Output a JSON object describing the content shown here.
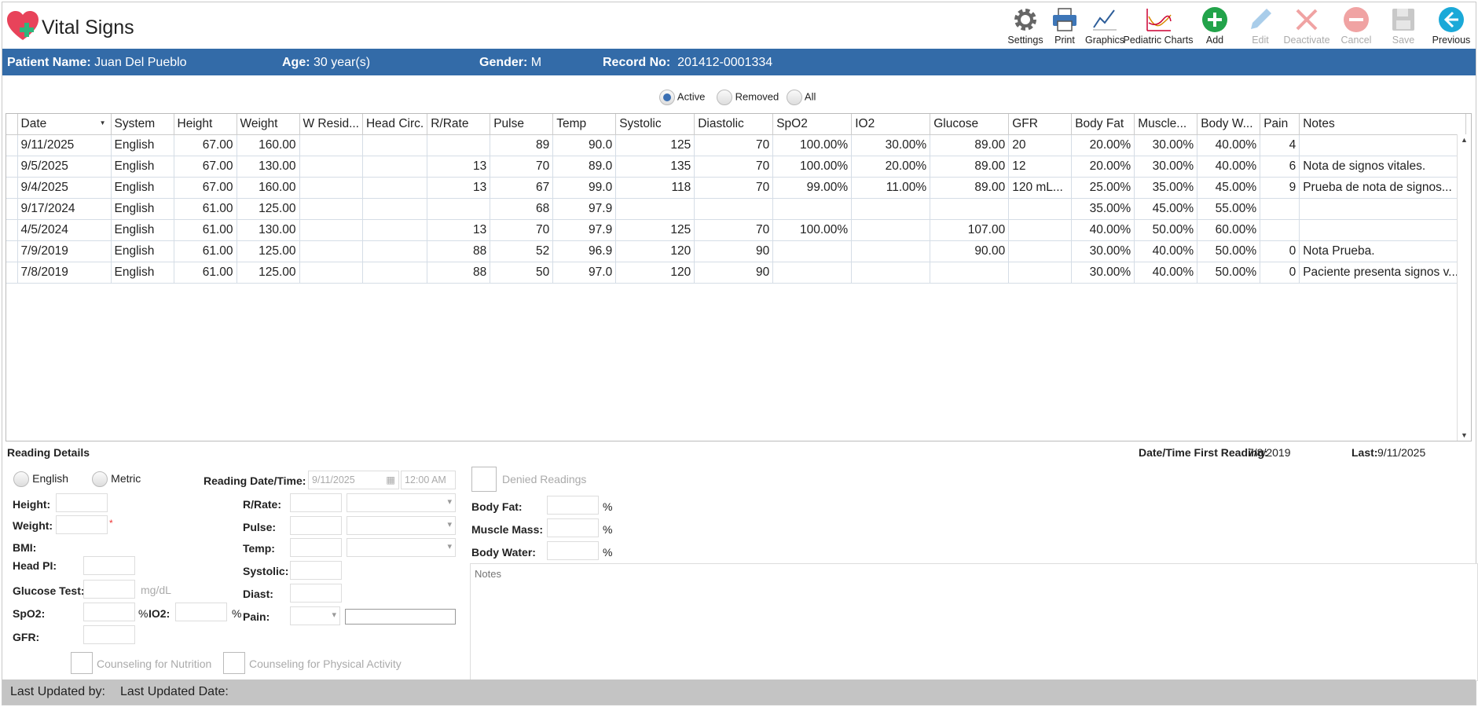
{
  "app": {
    "title": "Vital Signs"
  },
  "toolbar": [
    {
      "id": "settings",
      "label": "Settings",
      "icon": "gear-icon",
      "enabled": true
    },
    {
      "id": "print",
      "label": "Print",
      "icon": "printer-icon",
      "enabled": true
    },
    {
      "id": "graphics",
      "label": "Graphics",
      "icon": "line-chart-icon",
      "enabled": true
    },
    {
      "id": "pediatric",
      "label": "Pediatric Charts",
      "icon": "pediatric-chart-icon",
      "enabled": true
    },
    {
      "id": "add",
      "label": "Add",
      "icon": "plus-circle-icon",
      "enabled": true
    },
    {
      "id": "edit",
      "label": "Edit",
      "icon": "pencil-icon",
      "enabled": false
    },
    {
      "id": "deactivate",
      "label": "Deactivate",
      "icon": "x-icon",
      "enabled": false
    },
    {
      "id": "cancel",
      "label": "Cancel",
      "icon": "minus-circle-icon",
      "enabled": false
    },
    {
      "id": "save",
      "label": "Save",
      "icon": "floppy-icon",
      "enabled": false
    },
    {
      "id": "previous",
      "label": "Previous",
      "icon": "arrow-left-circle-icon",
      "enabled": true
    }
  ],
  "patient": {
    "name_label": "Patient Name:",
    "name": "Juan Del Pueblo",
    "age_label": "Age:",
    "age": "30 year(s)",
    "gender_label": "Gender:",
    "gender": "M",
    "record_label": "Record No:",
    "record": "201412-0001334"
  },
  "filter": {
    "active": "Active",
    "removed": "Removed",
    "all": "All",
    "selected": "Active"
  },
  "grid": {
    "columns": [
      "Date",
      "System",
      "Height",
      "Weight",
      "W Resid...",
      "Head Circ.",
      "R/Rate",
      "Pulse",
      "Temp",
      "Systolic",
      "Diastolic",
      "SpO2",
      "IO2",
      "Glucose",
      "GFR",
      "Body Fat",
      "Muscle...",
      "Body W...",
      "Pain",
      "Notes"
    ],
    "rows": [
      [
        "9/11/2025",
        "English",
        "67.00",
        "160.00",
        "",
        "",
        "",
        "89",
        "90.0",
        "125",
        "70",
        "100.00%",
        "30.00%",
        "89.00",
        "20",
        "20.00%",
        "30.00%",
        "40.00%",
        "4",
        ""
      ],
      [
        "9/5/2025",
        "English",
        "67.00",
        "130.00",
        "",
        "",
        "13",
        "70",
        "89.0",
        "135",
        "70",
        "100.00%",
        "20.00%",
        "89.00",
        "12",
        "20.00%",
        "30.00%",
        "40.00%",
        "6",
        "Nota de signos vitales."
      ],
      [
        "9/4/2025",
        "English",
        "67.00",
        "160.00",
        "",
        "",
        "13",
        "67",
        "99.0",
        "118",
        "70",
        "99.00%",
        "11.00%",
        "89.00",
        "120 mL...",
        "25.00%",
        "35.00%",
        "45.00%",
        "9",
        "Prueba de nota de signos..."
      ],
      [
        "9/17/2024",
        "English",
        "61.00",
        "125.00",
        "",
        "",
        "",
        "68",
        "97.9",
        "",
        "",
        "",
        "",
        "",
        "",
        "35.00%",
        "45.00%",
        "55.00%",
        "",
        ""
      ],
      [
        "4/5/2024",
        "English",
        "61.00",
        "130.00",
        "",
        "",
        "13",
        "70",
        "97.9",
        "125",
        "70",
        "100.00%",
        "",
        "107.00",
        "",
        "40.00%",
        "50.00%",
        "60.00%",
        "",
        ""
      ],
      [
        "7/9/2019",
        "English",
        "61.00",
        "125.00",
        "",
        "",
        "88",
        "52",
        "96.9",
        "120",
        "90",
        "",
        "",
        "90.00",
        "",
        "30.00%",
        "40.00%",
        "50.00%",
        "0",
        "Nota Prueba."
      ],
      [
        "7/8/2019",
        "English",
        "61.00",
        "125.00",
        "",
        "",
        "88",
        "50",
        "97.0",
        "120",
        "90",
        "",
        "",
        "",
        "",
        "30.00%",
        "40.00%",
        "50.00%",
        "0",
        "Paciente presenta signos v..."
      ]
    ]
  },
  "details": {
    "section_title": "Reading Details",
    "first_reading_label": "Date/Time First Reading:",
    "first_reading": "7/8/2019",
    "last_label": "Last:",
    "last": "9/11/2025",
    "english": "English",
    "metric": "Metric",
    "reading_dt_label": "Reading Date/Time:",
    "reading_date": "9/11/2025",
    "reading_time": "12:00 AM",
    "height": "Height:",
    "weight": "Weight:",
    "bmi": "BMI:",
    "head_pi": "Head PI:",
    "glucose": "Glucose Test:",
    "glucose_unit": "mg/dL",
    "spo2": "SpO2:",
    "pct": "%",
    "io2": "IO2:",
    "gfr": "GFR:",
    "rrate": "R/Rate:",
    "pulse": "Pulse:",
    "temp": "Temp:",
    "systolic": "Systolic:",
    "diast": "Diast:",
    "pain": "Pain:",
    "denied": "Denied Readings",
    "body_fat": "Body Fat:",
    "muscle_mass": "Muscle Mass:",
    "body_water": "Body Water:",
    "notes_placeholder": "Notes",
    "counsel_nutrition": "Counseling for Nutrition",
    "counsel_activity": "Counseling for Physical Activity",
    "required_mark": "*"
  },
  "footer": {
    "updated_by": "Last Updated by:",
    "updated_date": "Last Updated Date:"
  }
}
